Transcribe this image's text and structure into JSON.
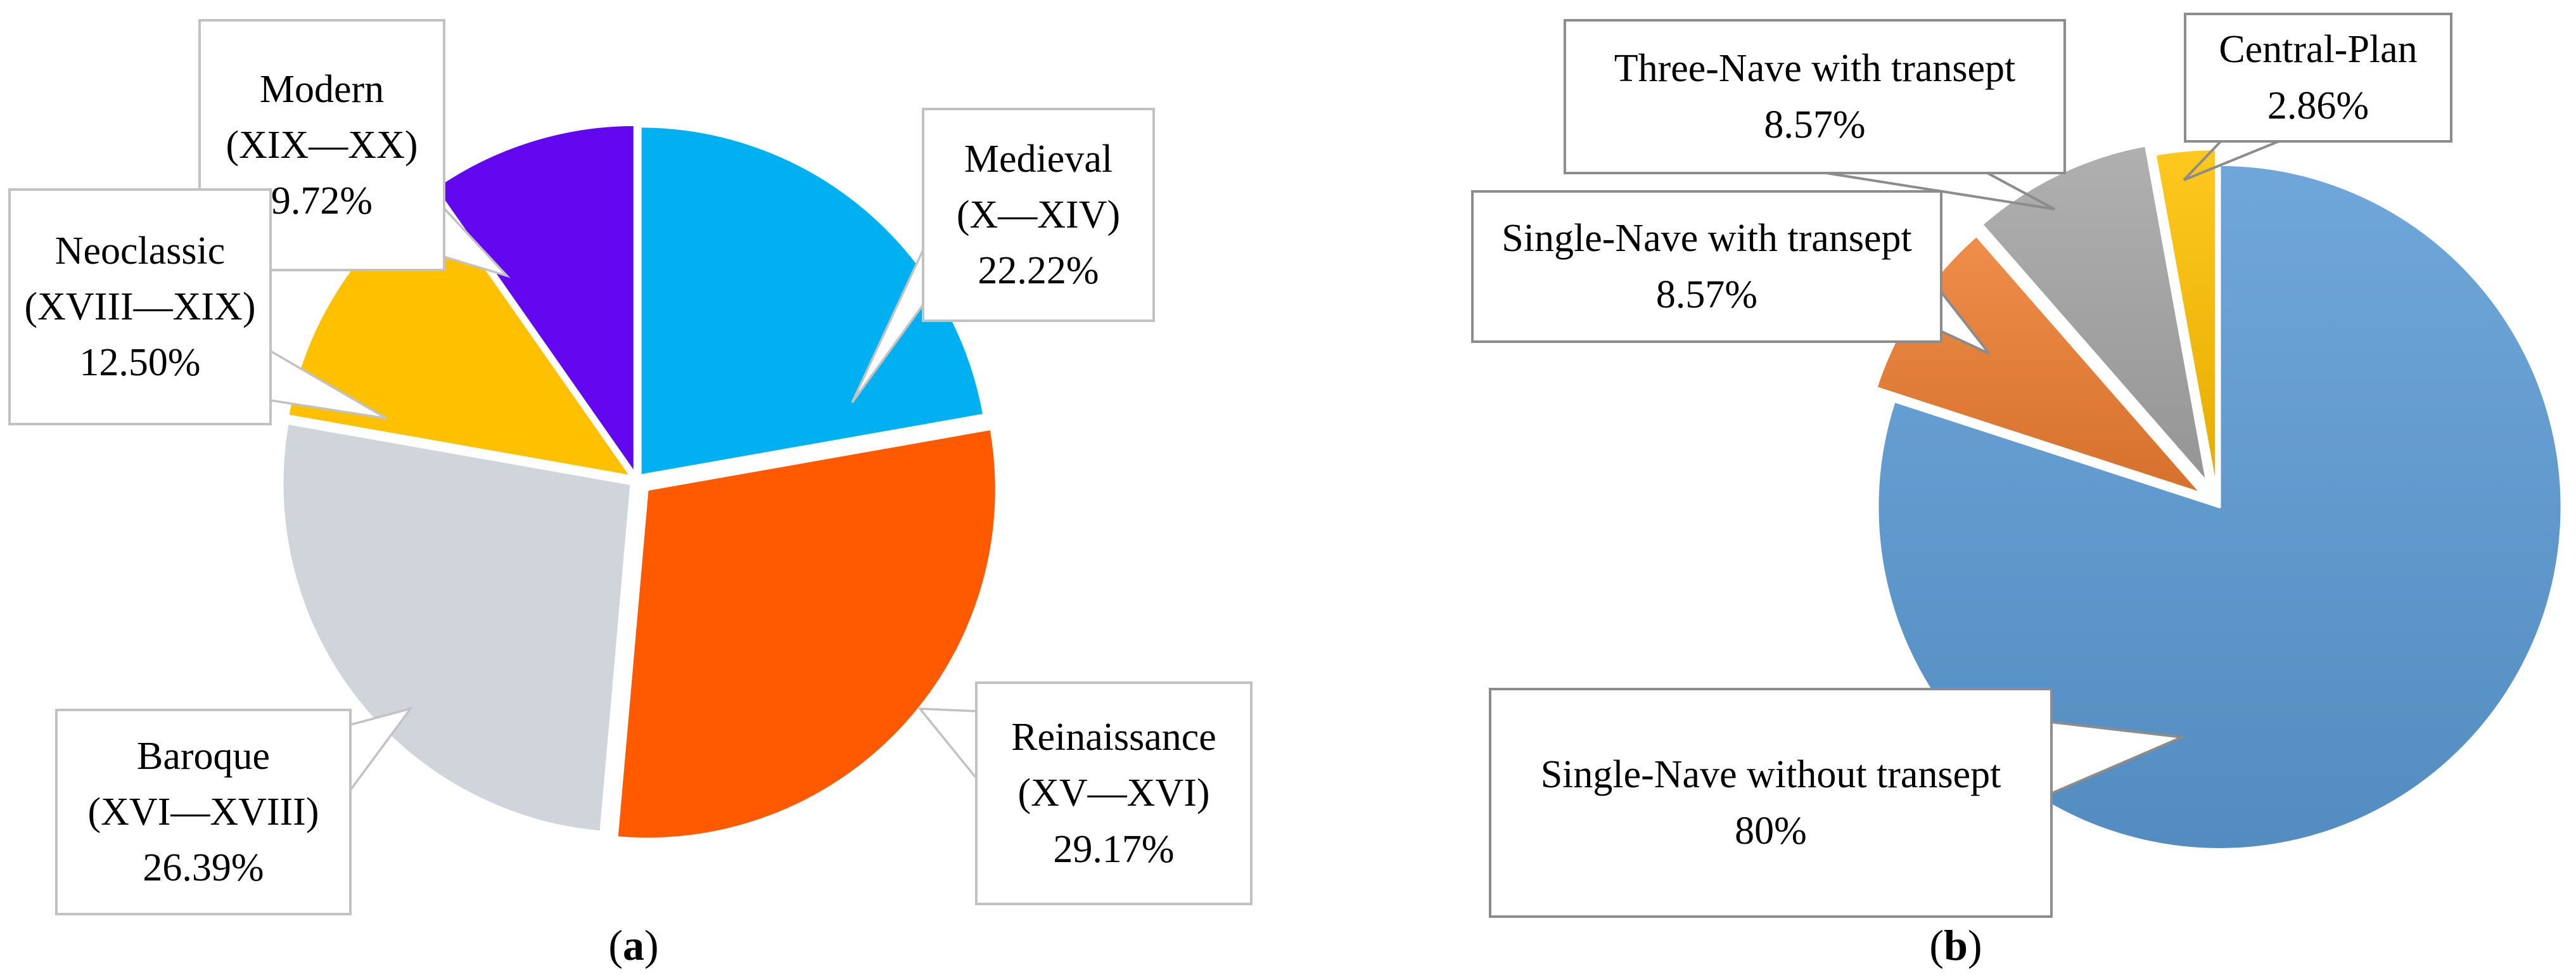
{
  "figure_captions": {
    "a": {
      "open": "(",
      "letter": "a",
      "close": ")"
    },
    "b": {
      "open": "(",
      "letter": "b",
      "close": ")"
    }
  },
  "chart_data": [
    {
      "type": "pie",
      "panel": "a",
      "title": "",
      "start_angle_deg": 0,
      "direction": "clockwise",
      "legend": "callout-labels",
      "slices": [
        {
          "label": "Medieval",
          "range": "(X—XIV)",
          "pct_label": "22.22%",
          "value": 22.22,
          "color": "#00B0F0"
        },
        {
          "label": "Reinaissance",
          "range": "(XV—XVI)",
          "pct_label": "29.17%",
          "value": 29.17,
          "color": "#FF5A00"
        },
        {
          "label": "Baroque",
          "range": "(XVI—XVIII)",
          "pct_label": "26.39%",
          "value": 26.39,
          "color": "#D0D5DC"
        },
        {
          "label": "Neoclassic",
          "range": "(XVIII—XIX)",
          "pct_label": "12.50%",
          "value": 12.5,
          "color": "#FFC000"
        },
        {
          "label": "Modern",
          "range": "(XIX—XX)",
          "pct_label": "9.72%",
          "value": 9.72,
          "color": "#6307F0"
        }
      ]
    },
    {
      "type": "pie",
      "panel": "b",
      "title": "",
      "start_angle_deg": 0,
      "direction": "clockwise",
      "legend": "callout-labels",
      "slices": [
        {
          "label": "Single-Nave without transept",
          "pct_label": "80%",
          "value": 80.0,
          "color": "#5B9BD5"
        },
        {
          "label": "Single-Nave with transept",
          "pct_label": "8.57%",
          "value": 8.57,
          "color": "#ED7D31"
        },
        {
          "label": "Three-Nave with transept",
          "pct_label": "8.57%",
          "value": 8.57,
          "color": "#A5A5A5"
        },
        {
          "label": "Central-Plan",
          "pct_label": "2.86%",
          "value": 2.86,
          "color": "#FFC000"
        }
      ]
    }
  ]
}
